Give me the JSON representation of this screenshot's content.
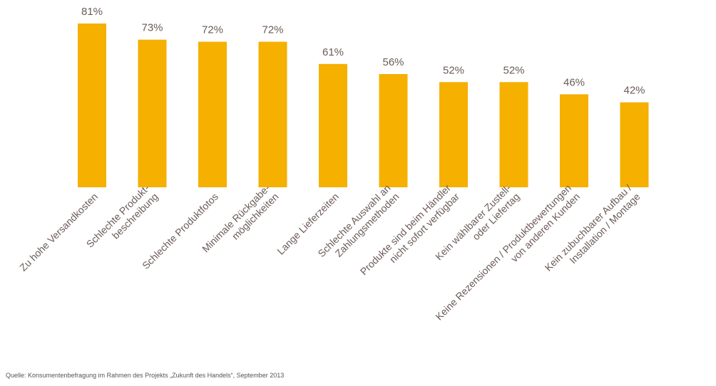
{
  "colors": {
    "bar": "#f5b000",
    "text": "#6b5c57",
    "background": "#ffffff"
  },
  "chart_data": {
    "type": "bar",
    "title": "",
    "xlabel": "",
    "ylabel": "",
    "ylim": [
      0,
      85
    ],
    "grid": false,
    "value_suffix": "%",
    "categories": [
      [
        "Zu hohe Versandkosten"
      ],
      [
        "Schlechte Produkt-",
        "beschreibung"
      ],
      [
        "Schlechte Produktfotos"
      ],
      [
        "Minimale Rückgabe-",
        "möglichkeiten"
      ],
      [
        "Lange Lieferzeiten"
      ],
      [
        "Schlechte Auswahl an",
        "Zahlungsmethoden"
      ],
      [
        "Produkte sind beim Händler",
        "nicht sofort verfügbar"
      ],
      [
        "Kein wählbarer Zustell-",
        "oder Liefertag"
      ],
      [
        "Keine Rezensionen / Produktbewertungen",
        "von anderen Kunden"
      ],
      [
        "Kein zubuchbarer Aufbau /",
        "Installation / Montage"
      ]
    ],
    "values": [
      81,
      73,
      72,
      72,
      61,
      56,
      52,
      52,
      46,
      42
    ]
  },
  "footer": {
    "source": "Quelle: Konsumentenbefragung im Rahmen des Projekts „Zukunft des Handels“, September 2013"
  }
}
